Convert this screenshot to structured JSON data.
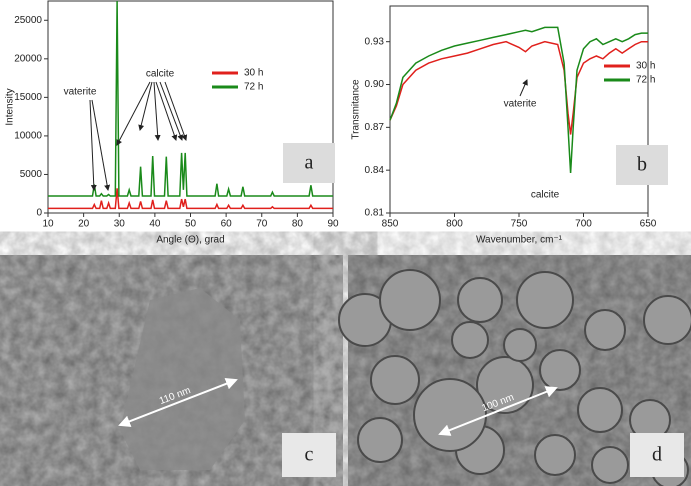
{
  "chart_data": [
    {
      "type": "line",
      "panel_label": "a",
      "x_label": "Angle (Θ), grad",
      "y_label": "Intensity",
      "x": [
        10,
        22.5,
        23,
        23.5,
        24.5,
        25,
        25.5,
        26.5,
        27,
        27.5,
        28.9,
        29.4,
        29.9,
        32.3,
        32.8,
        33.3,
        35.5,
        36,
        36.5,
        38.9,
        39.4,
        39.9,
        42.7,
        43.2,
        43.7,
        47,
        47.5,
        48,
        48.5,
        49,
        56.9,
        57.4,
        57.9,
        60.2,
        60.7,
        61.2,
        64.2,
        64.7,
        65.2,
        72.5,
        73,
        73.5,
        83.3,
        83.8,
        84.3,
        90
      ],
      "series": [
        {
          "name": "30 h",
          "color": "#e0201c",
          "values": [
            600,
            600,
            1100,
            600,
            600,
            1600,
            600,
            600,
            1300,
            600,
            600,
            3200,
            600,
            600,
            1300,
            600,
            600,
            1500,
            600,
            600,
            1700,
            600,
            600,
            1600,
            600,
            600,
            1800,
            800,
            1800,
            600,
            600,
            1100,
            600,
            600,
            1000,
            600,
            600,
            1000,
            600,
            600,
            800,
            600,
            600,
            1000,
            600,
            600
          ]
        },
        {
          "name": "72 h",
          "color": "#1a8a1a",
          "values": [
            2200,
            2200,
            3700,
            2200,
            2200,
            2500,
            2200,
            2200,
            2400,
            2200,
            2200,
            27500,
            2200,
            2200,
            3000,
            2200,
            2200,
            6000,
            2200,
            2200,
            7400,
            2200,
            2200,
            7300,
            2200,
            2200,
            7800,
            3000,
            7800,
            2200,
            2200,
            3800,
            2200,
            2200,
            3100,
            2200,
            2200,
            3400,
            2200,
            2200,
            2700,
            2200,
            2200,
            3600,
            2200,
            2200
          ]
        }
      ],
      "xlim": [
        10,
        90
      ],
      "xticks": [
        10,
        20,
        30,
        40,
        50,
        60,
        70,
        80,
        90
      ],
      "ylim": [
        0,
        27500
      ],
      "yticks": [
        0,
        5000,
        10000,
        15000,
        20000,
        25000
      ],
      "annotations": [
        "calcite",
        "vaterite"
      ]
    },
    {
      "type": "line",
      "panel_label": "b",
      "x_label": "Wavenumber, cm⁻¹",
      "y_label": "Transmitance",
      "x": [
        850,
        845,
        840,
        830,
        820,
        810,
        800,
        790,
        780,
        770,
        760,
        750,
        745,
        740,
        730,
        720,
        715,
        712,
        710,
        708,
        705,
        700,
        695,
        690,
        685,
        680,
        675,
        670,
        665,
        660,
        655,
        650
      ],
      "series": [
        {
          "name": "30 h",
          "color": "#e0201c",
          "values": [
            0.875,
            0.885,
            0.9,
            0.91,
            0.915,
            0.918,
            0.92,
            0.922,
            0.925,
            0.928,
            0.93,
            0.926,
            0.923,
            0.927,
            0.93,
            0.928,
            0.91,
            0.88,
            0.865,
            0.88,
            0.905,
            0.915,
            0.918,
            0.92,
            0.918,
            0.922,
            0.925,
            0.922,
            0.925,
            0.928,
            0.93,
            0.93
          ]
        },
        {
          "name": "72 h",
          "color": "#1a8a1a",
          "values": [
            0.875,
            0.887,
            0.905,
            0.915,
            0.92,
            0.924,
            0.927,
            0.929,
            0.931,
            0.933,
            0.935,
            0.937,
            0.938,
            0.937,
            0.94,
            0.94,
            0.915,
            0.87,
            0.838,
            0.87,
            0.91,
            0.925,
            0.93,
            0.932,
            0.928,
            0.93,
            0.932,
            0.93,
            0.932,
            0.935,
            0.936,
            0.936
          ]
        }
      ],
      "xlim": [
        850,
        650
      ],
      "xticks": [
        850,
        800,
        750,
        700,
        650
      ],
      "ylim": [
        0.81,
        0.955
      ],
      "yticks": [
        0.81,
        0.84,
        0.87,
        {
          "value": 0.9,
          "label": "0.90"
        },
        0.93
      ],
      "annotations": [
        "vaterite",
        "calcite"
      ]
    }
  ],
  "images": [
    {
      "panel_label": "c",
      "scale": "110 nm"
    },
    {
      "panel_label": "d",
      "scale": "100 nm"
    }
  ]
}
